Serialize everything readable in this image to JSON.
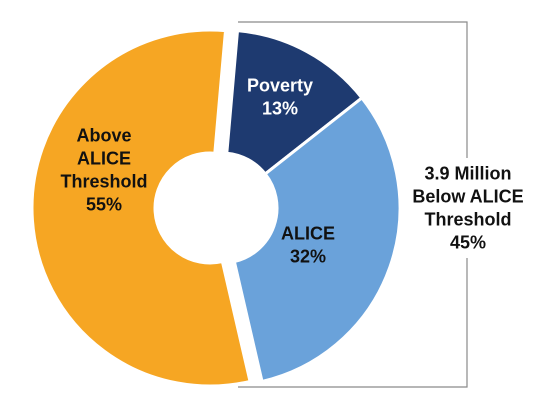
{
  "chart_data": {
    "type": "pie",
    "variant": "donut",
    "title": "",
    "slices": [
      {
        "label_lines": [
          "Above",
          "ALICE",
          "Threshold"
        ],
        "percent_label": "55%",
        "value": 55,
        "color": "#F6A623",
        "text_color": "#111111"
      },
      {
        "label_lines": [
          "Poverty"
        ],
        "percent_label": "13%",
        "value": 13,
        "color": "#1E3A70",
        "text_color": "#FFFFFF"
      },
      {
        "label_lines": [
          "ALICE"
        ],
        "percent_label": "32%",
        "value": 32,
        "color": "#6AA2DA",
        "text_color": "#111111"
      }
    ],
    "bracket": {
      "label_lines": [
        "3.9 Million",
        "Below ALICE",
        "Threshold"
      ],
      "percent_label": "45%",
      "value": 45,
      "covers": [
        "Poverty",
        "ALICE"
      ]
    },
    "legend": "none",
    "grid": false
  }
}
